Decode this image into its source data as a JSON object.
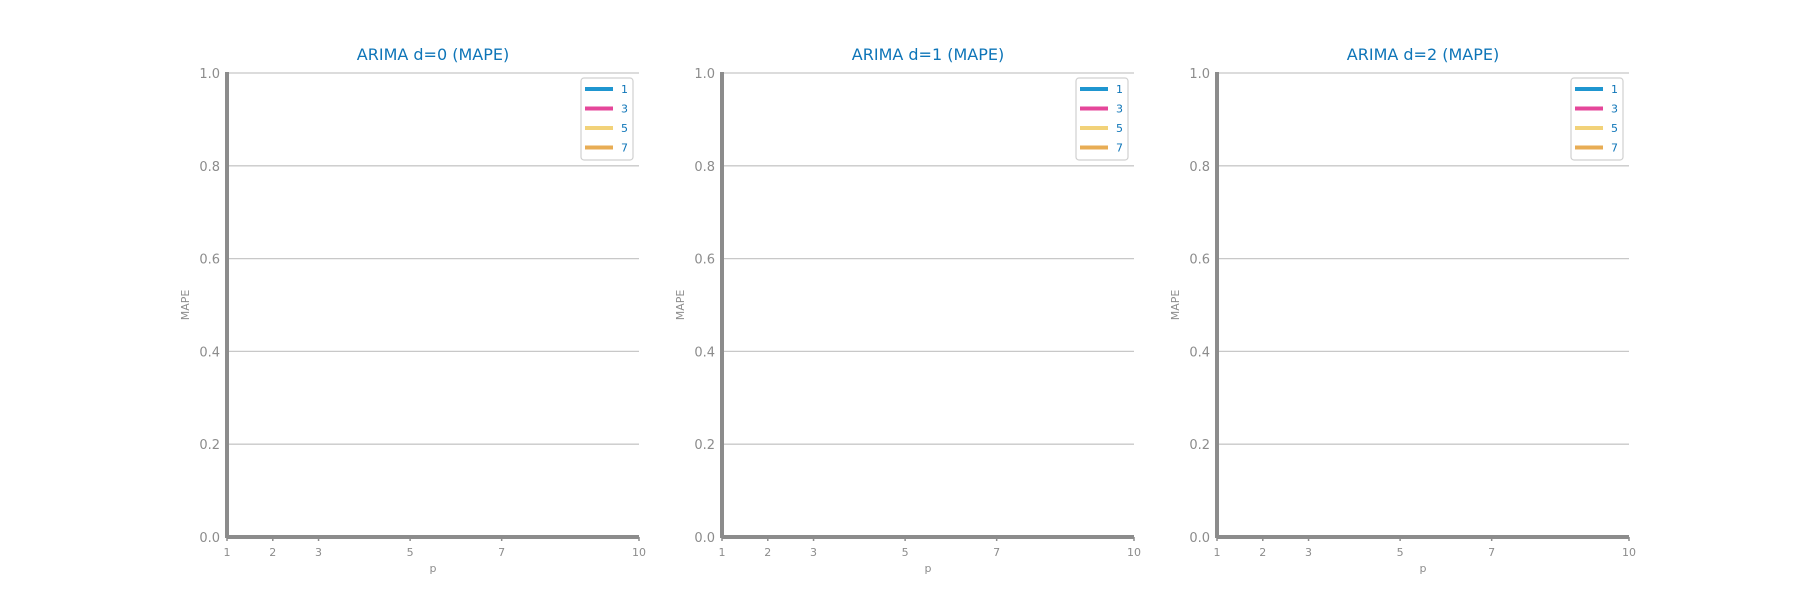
{
  "figure": {
    "background": "#ffffff",
    "text_color": "#0e75b8",
    "axis_color": "#8c8c8c",
    "tick_text_color": "#8c8c8c",
    "grid_color": "#c8c8c8"
  },
  "chart_data": [
    {
      "type": "line",
      "title": "ARIMA d=0 (MAPE)",
      "xlabel": "p",
      "ylabel": "MAPE",
      "xlim": [
        1,
        10
      ],
      "ylim": [
        0.0,
        1.0
      ],
      "xticks": [
        1,
        2,
        3,
        5,
        7,
        10
      ],
      "yticks": [
        0.0,
        0.2,
        0.4,
        0.6,
        0.8,
        1.0
      ],
      "ytick_labels": [
        "0.0",
        "0.2",
        "0.4",
        "0.6",
        "0.8",
        "1.0"
      ],
      "grid": "horizontal",
      "legend_position": "top-right",
      "series": [
        {
          "name": "1",
          "color": "#1f96d0",
          "x": [],
          "y": []
        },
        {
          "name": "3",
          "color": "#e5469a",
          "x": [],
          "y": []
        },
        {
          "name": "5",
          "color": "#f2d279",
          "x": [],
          "y": []
        },
        {
          "name": "7",
          "color": "#e8ad55",
          "x": [],
          "y": []
        }
      ]
    },
    {
      "type": "line",
      "title": "ARIMA d=1 (MAPE)",
      "xlabel": "p",
      "ylabel": "MAPE",
      "xlim": [
        1,
        10
      ],
      "ylim": [
        0.0,
        1.0
      ],
      "xticks": [
        1,
        2,
        3,
        5,
        7,
        10
      ],
      "yticks": [
        0.0,
        0.2,
        0.4,
        0.6,
        0.8,
        1.0
      ],
      "ytick_labels": [
        "0.0",
        "0.2",
        "0.4",
        "0.6",
        "0.8",
        "1.0"
      ],
      "grid": "horizontal",
      "legend_position": "top-right",
      "series": [
        {
          "name": "1",
          "color": "#1f96d0",
          "x": [],
          "y": []
        },
        {
          "name": "3",
          "color": "#e5469a",
          "x": [],
          "y": []
        },
        {
          "name": "5",
          "color": "#f2d279",
          "x": [],
          "y": []
        },
        {
          "name": "7",
          "color": "#e8ad55",
          "x": [],
          "y": []
        }
      ]
    },
    {
      "type": "line",
      "title": "ARIMA d=2 (MAPE)",
      "xlabel": "p",
      "ylabel": "MAPE",
      "xlim": [
        1,
        10
      ],
      "ylim": [
        0.0,
        1.0
      ],
      "xticks": [
        1,
        2,
        3,
        5,
        7,
        10
      ],
      "yticks": [
        0.0,
        0.2,
        0.4,
        0.6,
        0.8,
        1.0
      ],
      "ytick_labels": [
        "0.0",
        "0.2",
        "0.4",
        "0.6",
        "0.8",
        "1.0"
      ],
      "grid": "horizontal",
      "legend_position": "top-right",
      "series": [
        {
          "name": "1",
          "color": "#1f96d0",
          "x": [],
          "y": []
        },
        {
          "name": "3",
          "color": "#e5469a",
          "x": [],
          "y": []
        },
        {
          "name": "5",
          "color": "#f2d279",
          "x": [],
          "y": []
        },
        {
          "name": "7",
          "color": "#e8ad55",
          "x": [],
          "y": []
        }
      ]
    }
  ]
}
